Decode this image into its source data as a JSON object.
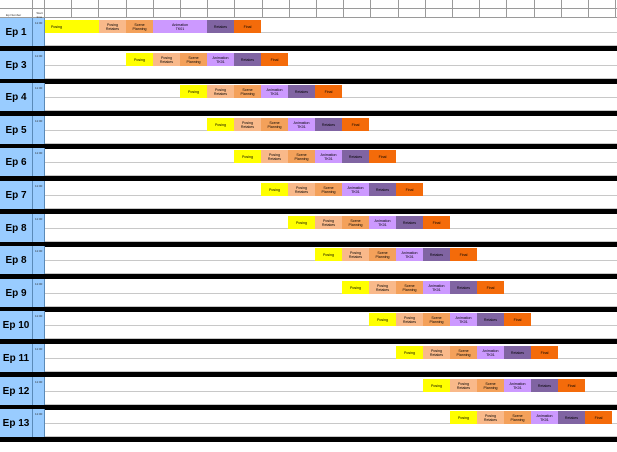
{
  "header": {
    "episode_col_label": "Ep Number",
    "time_col_label": "Start time"
  },
  "colors": {
    "episode_cell": "#99ccff",
    "separator": "#000000",
    "posing": "#ffff00",
    "posing_retakes": "#f9b98a",
    "scene_planning": "#f4a15a",
    "animation_tk01": "#cc99ff",
    "retakes": "#8064a2",
    "final": "#f46b0a"
  },
  "task_types": [
    {
      "key": "posing",
      "label": "Posing",
      "color": "#ffff00"
    },
    {
      "key": "posing_retakes",
      "label": "Posing\nRetakes",
      "color": "#f9b98a"
    },
    {
      "key": "scene_planning",
      "label": "Scene\nPlanning",
      "color": "#f4a15a"
    },
    {
      "key": "animation_tk01",
      "label": "Animation\nTK01",
      "color": "#cc99ff"
    },
    {
      "key": "retakes",
      "label": "Retakes",
      "color": "#8064a2"
    },
    {
      "key": "final",
      "label": "Final",
      "color": "#f46b0a"
    }
  ],
  "episodes": [
    {
      "label": "Ep 1",
      "time": "11:00"
    },
    {
      "label": "Ep 3",
      "time": "11:00"
    },
    {
      "label": "Ep 4",
      "time": "11:00"
    },
    {
      "label": "Ep 5",
      "time": "11:00"
    },
    {
      "label": "Ep 6",
      "time": "11:00"
    },
    {
      "label": "Ep 7",
      "time": "11:00"
    },
    {
      "label": "Ep 8",
      "time": "11:00"
    },
    {
      "label": "Ep 8",
      "time": "11:00"
    },
    {
      "label": "Ep 9",
      "time": "11:00"
    },
    {
      "label": "Ep 10",
      "time": "11:00"
    },
    {
      "label": "Ep 11",
      "time": "11:00"
    },
    {
      "label": "Ep 12",
      "time": "11:00"
    },
    {
      "label": "Ep 13",
      "time": "11:00"
    }
  ]
}
